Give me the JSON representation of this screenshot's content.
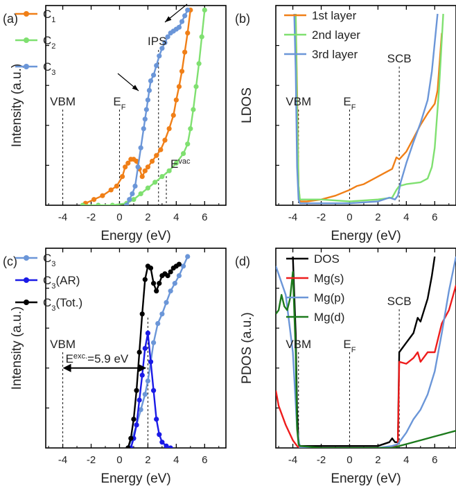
{
  "colors": {
    "orange": "#f07f17",
    "green": "#7fe070",
    "lightblue": "#6b96d8",
    "blue": "#1a1ae6",
    "black": "#000000",
    "red": "#ee1c1c",
    "darkgreen": "#1c7a1c",
    "axis": "#000000"
  },
  "chart_data": [
    {
      "panel": "(a)",
      "type": "line",
      "xlabel": "Energy (eV)",
      "ylabel": "Intensity (a.u.)",
      "xlim": [
        -5.2,
        7.5
      ],
      "ylim": [
        0,
        1
      ],
      "xticks": [
        -4,
        -2,
        0,
        2,
        4,
        6
      ],
      "xticklabels": [
        "-4",
        "-2",
        "0",
        "2",
        "4",
        "6"
      ],
      "markers": true,
      "series": [
        {
          "name": "C1",
          "color": "#f07f17",
          "x": [
            -2.4,
            -1.8,
            -1.2,
            -0.6,
            -0.2,
            0.2,
            0.4,
            0.6,
            0.8,
            1.0,
            1.2,
            1.4,
            1.6,
            1.8,
            2.0,
            2.3,
            2.6,
            2.9,
            3.2,
            3.5,
            3.8,
            4.0,
            4.2,
            4.4,
            4.6,
            4.8,
            5.0
          ],
          "y": [
            0.01,
            0.03,
            0.05,
            0.08,
            0.1,
            0.15,
            0.2,
            0.22,
            0.24,
            0.24,
            0.23,
            0.19,
            0.15,
            0.18,
            0.2,
            0.23,
            0.26,
            0.29,
            0.34,
            0.4,
            0.47,
            0.55,
            0.62,
            0.7,
            0.8,
            0.9,
            1.02
          ]
        },
        {
          "name": "C2",
          "color": "#7fe070",
          "x": [
            -2.6,
            -1.5,
            -0.5,
            0.5,
            1.0,
            1.5,
            2.0,
            2.5,
            3.0,
            3.5,
            4.0,
            4.5,
            4.8,
            5.0,
            5.2,
            5.4,
            5.6,
            5.8,
            6.0
          ],
          "y": [
            0.0,
            0.0,
            0.0,
            0.01,
            0.03,
            0.06,
            0.09,
            0.12,
            0.15,
            0.18,
            0.22,
            0.27,
            0.32,
            0.4,
            0.5,
            0.62,
            0.74,
            0.88,
            1.02
          ]
        },
        {
          "name": "C3",
          "color": "#6b96d8",
          "x": [
            0.5,
            0.7,
            0.9,
            1.1,
            1.3,
            1.5,
            1.7,
            1.8,
            1.9,
            2.0,
            2.1,
            2.2,
            2.4,
            2.6,
            2.8,
            3.0,
            3.2,
            3.4,
            3.6,
            3.8,
            4.0,
            4.2,
            4.4,
            4.6,
            4.8
          ],
          "y": [
            0.0,
            0.03,
            0.06,
            0.1,
            0.2,
            0.3,
            0.4,
            0.45,
            0.5,
            0.55,
            0.6,
            0.65,
            0.68,
            0.73,
            0.78,
            0.82,
            0.85,
            0.88,
            0.9,
            0.91,
            0.92,
            0.93,
            0.96,
            0.99,
            1.02
          ]
        }
      ],
      "vlines": [
        {
          "x": -4,
          "label": "VBM"
        },
        {
          "x": 0,
          "label": "E",
          "sub": "F"
        },
        {
          "x": 2.75,
          "label": "IPS"
        },
        {
          "x": 3.3,
          "label": "E",
          "sup": "vac"
        }
      ],
      "legend": [
        "C1",
        "C2",
        "C3"
      ]
    },
    {
      "panel": "(b)",
      "type": "line",
      "xlabel": "Energy (eV)",
      "ylabel": "LDOS",
      "xlim": [
        -5.2,
        7.5
      ],
      "ylim": [
        0,
        1
      ],
      "xticks": [
        -4,
        -2,
        0,
        2,
        4,
        6
      ],
      "xticklabels": [
        "-4",
        "-2",
        "0",
        "2",
        "4",
        "6"
      ],
      "series": [
        {
          "name": "1st layer",
          "color": "#f07f17",
          "x": [
            -3.8,
            -3.7,
            -3.6,
            -3.5,
            -3.0,
            -2.0,
            -1.0,
            0.0,
            0.5,
            1.0,
            1.5,
            2.0,
            2.5,
            3.0,
            3.3,
            3.5,
            4.0,
            4.5,
            5.0,
            5.5,
            6.0,
            6.2,
            6.5
          ],
          "y": [
            1.0,
            0.6,
            0.1,
            0.02,
            0.02,
            0.03,
            0.05,
            0.08,
            0.1,
            0.11,
            0.13,
            0.15,
            0.17,
            0.19,
            0.25,
            0.24,
            0.28,
            0.35,
            0.42,
            0.48,
            0.53,
            0.6,
            0.9
          ]
        },
        {
          "name": "2nd layer",
          "color": "#7fe070",
          "x": [
            -3.8,
            -3.7,
            -3.6,
            -3.5,
            -2.0,
            0.0,
            2.0,
            3.0,
            3.3,
            3.5,
            4.0,
            5.0,
            5.5,
            5.8,
            6.0,
            6.3,
            6.6
          ],
          "y": [
            1.0,
            0.5,
            0.1,
            0.03,
            0.03,
            0.02,
            0.03,
            0.04,
            0.08,
            0.1,
            0.11,
            0.12,
            0.14,
            0.2,
            0.3,
            0.6,
            1.0
          ]
        },
        {
          "name": "3rd layer",
          "color": "#6b96d8",
          "x": [
            -3.9,
            -3.8,
            -3.7,
            -3.6,
            -3.5,
            -2.0,
            0.0,
            2.0,
            2.8,
            3.2,
            3.4,
            3.6,
            4.0,
            4.5,
            5.0,
            5.5,
            5.8,
            6.0,
            6.2
          ],
          "y": [
            1.0,
            0.7,
            0.2,
            0.03,
            0.01,
            0.01,
            0.01,
            0.02,
            0.04,
            0.03,
            0.05,
            0.12,
            0.22,
            0.33,
            0.43,
            0.55,
            0.7,
            0.85,
            1.0
          ]
        }
      ],
      "vlines": [
        {
          "x": -3.6,
          "label": "VBM"
        },
        {
          "x": 0,
          "label": "E",
          "sub": "F"
        },
        {
          "x": 3.5,
          "label": "SCB"
        }
      ],
      "legend": [
        "1st layer",
        "2nd layer",
        "3rd layer"
      ]
    },
    {
      "panel": "(c)",
      "type": "line",
      "xlabel": "Energy (eV)",
      "ylabel": "Intensity (a.u.)",
      "xlim": [
        -5.2,
        7.5
      ],
      "ylim": [
        0,
        1
      ],
      "xticks": [
        -4,
        -2,
        0,
        2,
        4,
        6
      ],
      "xticklabels": [
        "-4",
        "-2",
        "0",
        "2",
        "4",
        "6"
      ],
      "markers": true,
      "series": [
        {
          "name": "C3",
          "color": "#6b96d8",
          "x": [
            0.6,
            0.9,
            1.2,
            1.5,
            1.8,
            2.0,
            2.2,
            2.4,
            2.7,
            3.0,
            3.3,
            3.6,
            3.9,
            4.2,
            4.5,
            4.8
          ],
          "y": [
            0.0,
            0.05,
            0.12,
            0.2,
            0.28,
            0.35,
            0.45,
            0.55,
            0.65,
            0.7,
            0.76,
            0.82,
            0.86,
            0.9,
            0.95,
            1.0
          ]
        },
        {
          "name": "C3(AR)",
          "color": "#1a1ae6",
          "x": [
            0.8,
            1.0,
            1.2,
            1.4,
            1.6,
            1.8,
            2.0,
            2.2,
            2.4,
            2.6,
            2.8,
            3.0,
            3.3,
            3.6
          ],
          "y": [
            0.0,
            0.05,
            0.12,
            0.25,
            0.38,
            0.52,
            0.6,
            0.45,
            0.3,
            0.15,
            0.07,
            0.03,
            0.01,
            0.0
          ]
        },
        {
          "name": "C3(Tot.)",
          "color": "#000000",
          "x": [
            0.6,
            0.8,
            1.0,
            1.2,
            1.4,
            1.6,
            1.8,
            2.0,
            2.2,
            2.4,
            2.6,
            2.8,
            3.0,
            3.2,
            3.4,
            3.6,
            3.8,
            4.0,
            4.2
          ],
          "y": [
            0.0,
            0.05,
            0.15,
            0.3,
            0.5,
            0.7,
            0.88,
            0.95,
            0.94,
            0.86,
            0.82,
            0.86,
            0.9,
            0.91,
            0.9,
            0.92,
            0.94,
            0.95,
            0.96
          ]
        }
      ],
      "vlines": [
        {
          "x": -4,
          "label": "VBM"
        },
        {
          "x": 2,
          "label": ""
        }
      ],
      "arrow": {
        "x1": -4,
        "x2": 1.9,
        "y": 0.4,
        "label": "E",
        "sup": "exc.",
        "value": "=5.9 eV"
      },
      "legend": [
        "C3",
        "C3(AR)",
        "C3(Tot.)"
      ]
    },
    {
      "panel": "(d)",
      "type": "line",
      "xlabel": "Energy (eV)",
      "ylabel": "PDOS (a.u.)",
      "xlim": [
        -5.2,
        7.5
      ],
      "ylim": [
        0,
        1
      ],
      "xticks": [
        -4,
        -2,
        0,
        2,
        4,
        6
      ],
      "xticklabels": [
        "-4",
        "-2",
        "0",
        "2",
        "4",
        "6"
      ],
      "series": [
        {
          "name": "DOS",
          "color": "#000000",
          "x": [
            -4.0,
            -3.8,
            -3.7,
            -3.6,
            -3.5,
            -2.0,
            0.0,
            2.0,
            2.8,
            3.0,
            3.2,
            3.4,
            3.5,
            4.0,
            4.5,
            4.8,
            5.0,
            5.5,
            5.8,
            6.0
          ],
          "y": [
            1.0,
            0.6,
            0.2,
            0.03,
            0.01,
            0.01,
            0.01,
            0.01,
            0.03,
            0.05,
            0.03,
            0.03,
            0.5,
            0.55,
            0.6,
            0.68,
            0.66,
            0.78,
            0.9,
            1.0
          ]
        },
        {
          "name": "Mg(s)",
          "color": "#ee1c1c",
          "x": [
            -5.2,
            -5.0,
            -4.5,
            -4.0,
            -3.7,
            -3.5,
            -2.0,
            0.0,
            2.0,
            3.0,
            3.4,
            3.5,
            4.0,
            4.5,
            4.8,
            5.0,
            5.5,
            6.0,
            6.5,
            7.0,
            7.5
          ],
          "y": [
            0.3,
            0.22,
            0.12,
            0.04,
            0.01,
            0.0,
            0.0,
            0.0,
            0.0,
            0.0,
            0.02,
            0.45,
            0.44,
            0.47,
            0.5,
            0.45,
            0.5,
            0.5,
            0.65,
            0.72,
            0.85
          ]
        },
        {
          "name": "Mg(p)",
          "color": "#6b96d8",
          "x": [
            -5.2,
            -4.5,
            -4.0,
            -3.7,
            -3.5,
            -2.0,
            0.0,
            2.0,
            3.0,
            3.4,
            3.6,
            4.0,
            4.5,
            5.0,
            5.5,
            6.0,
            6.5,
            7.0,
            7.5
          ],
          "y": [
            0.95,
            0.8,
            0.5,
            0.1,
            0.0,
            0.0,
            0.0,
            0.0,
            0.01,
            0.02,
            0.04,
            0.08,
            0.15,
            0.2,
            0.28,
            0.4,
            0.6,
            0.82,
            1.0
          ]
        },
        {
          "name": "Mg(d)",
          "color": "#1c7a1c",
          "x": [
            -5.2,
            -5.0,
            -4.8,
            -4.6,
            -4.4,
            -4.2,
            -4.0,
            -3.8,
            -3.7,
            -3.6,
            -3.5,
            -2.0,
            0.0,
            2.0,
            3.0,
            3.5,
            4.0,
            5.0,
            6.0,
            7.0,
            7.5
          ],
          "y": [
            0.7,
            0.72,
            0.8,
            0.74,
            0.72,
            0.78,
            0.92,
            0.5,
            0.1,
            0.02,
            0.01,
            0.0,
            0.0,
            0.0,
            0.0,
            0.01,
            0.02,
            0.04,
            0.06,
            0.08,
            0.09
          ]
        }
      ],
      "vlines": [
        {
          "x": -3.6,
          "label": "VBM"
        },
        {
          "x": 0,
          "label": "E",
          "sub": "F"
        },
        {
          "x": 3.5,
          "label": "SCB"
        }
      ],
      "legend": [
        "DOS",
        "Mg(s)",
        "Mg(p)",
        "Mg(d)"
      ]
    }
  ]
}
